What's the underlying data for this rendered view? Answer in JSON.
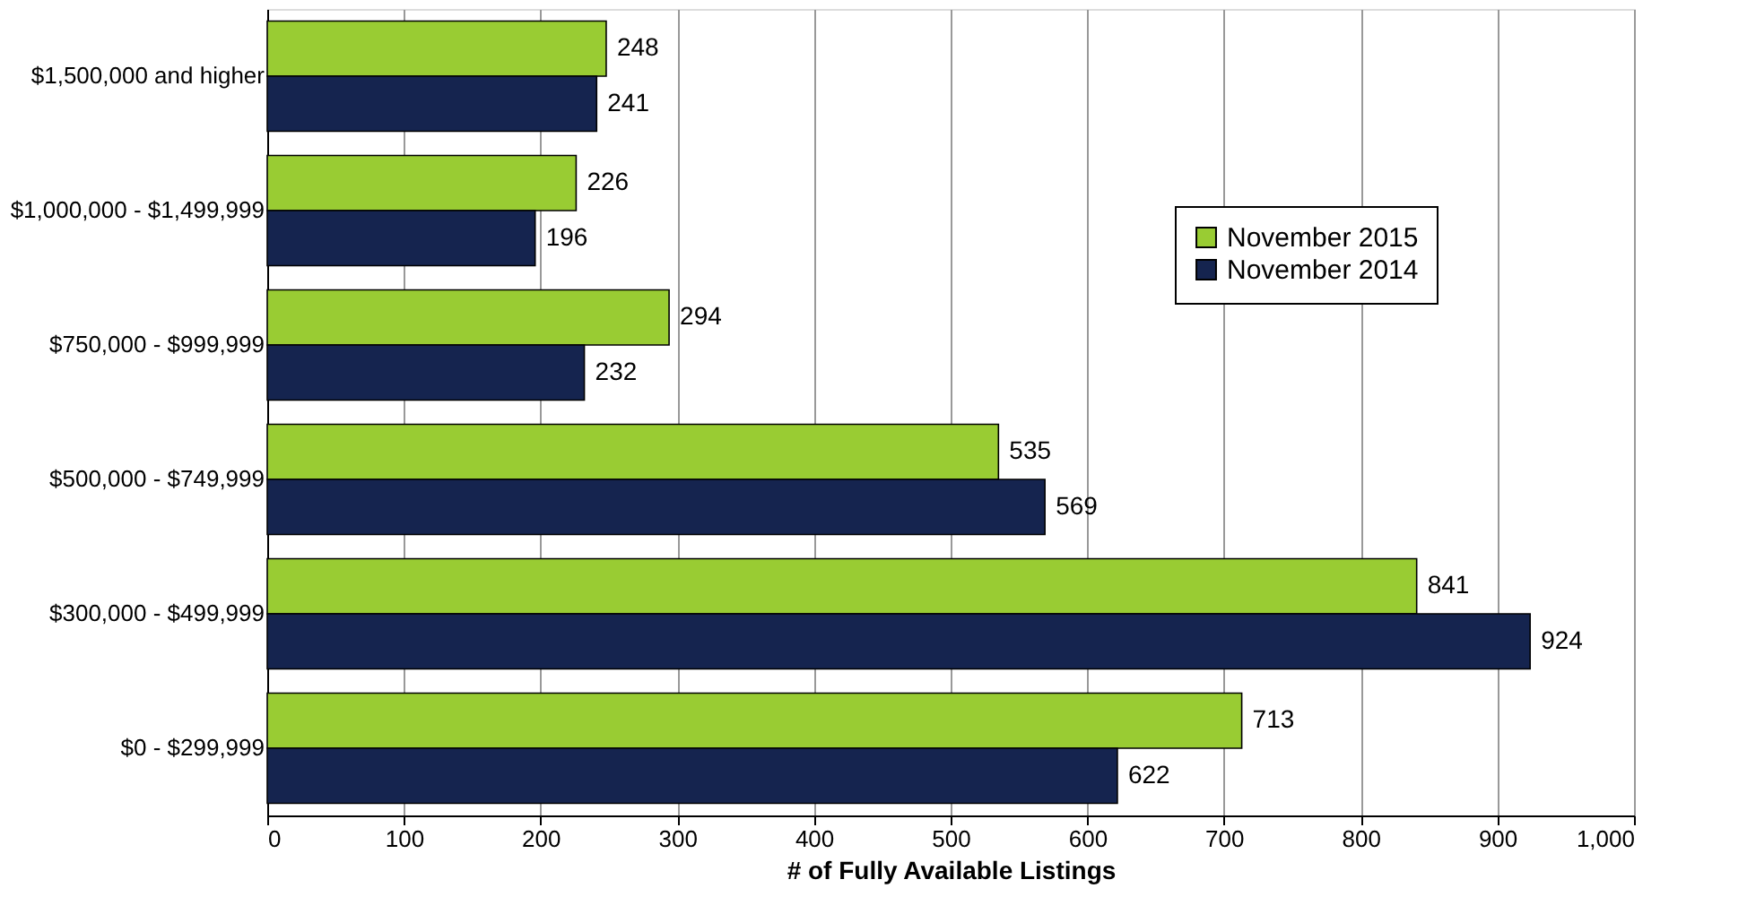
{
  "chart_data": {
    "type": "bar",
    "orientation": "horizontal",
    "xlabel": "# of Fully Available Listings",
    "categories": [
      "$1,500,000 and higher",
      "$1,000,000 - $1,499,999",
      "$750,000 - $999,999",
      "$500,000 - $749,999",
      "$300,000 - $499,999",
      "$0 - $299,999"
    ],
    "series": [
      {
        "name": "November 2015",
        "color": "#99cc33",
        "values": [
          248,
          226,
          294,
          535,
          841,
          713
        ]
      },
      {
        "name": "November 2014",
        "color": "#15244f",
        "values": [
          241,
          196,
          232,
          569,
          924,
          622
        ]
      }
    ],
    "xlim": [
      0,
      1000
    ],
    "xticks": [
      0,
      100,
      200,
      300,
      400,
      500,
      600,
      700,
      800,
      900,
      {
        "value": 1000,
        "label": "1,000"
      }
    ],
    "grid": "x",
    "legend": "top right",
    "data_labels": true
  }
}
